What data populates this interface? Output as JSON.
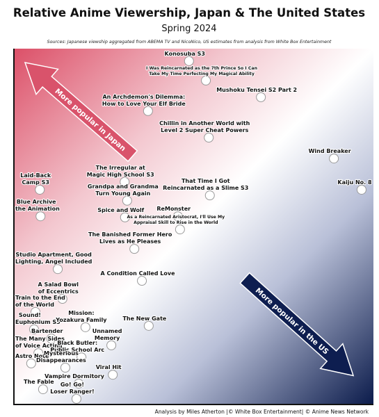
{
  "chart_data": {
    "type": "scatter",
    "title": "Relative Anime Viewership, Japan & The United States",
    "subtitle": "Spring 2024",
    "source": "Sources: Japanese viewship aggregated from ABEMA TV and NicoNico, US estimates from analysis from White Box Entertainment",
    "footer": "Analysis by Miles Atherton |© White Box Entertainment| © Anime News Network",
    "annotations": [
      "More popular in Japan",
      "More popular in the US"
    ],
    "xlim": [
      0,
      100
    ],
    "ylim": [
      0,
      100
    ],
    "color": "#ffffff",
    "labels": [
      [
        "Konosuba S3"
      ],
      [
        "I Was Reincarnated as the 7th Prince So I Can",
        "Take My Time Perfecting My Magical Ability"
      ],
      [
        "Mushoku Tensei S2 Part 2"
      ],
      [
        "An Archdemon's Dilemma:",
        "How to Love Your Elf Bride"
      ],
      [
        "Chillin in Another World with",
        "Level 2 Super Cheat Powers"
      ],
      [
        "Wind Breaker"
      ],
      [
        "The Irregular at",
        "Magic High School S3"
      ],
      [
        "Laid-Back",
        "Camp S3"
      ],
      [
        "Kaiju No. 8"
      ],
      [
        "That Time I Got",
        "Reincarnated as a Slime S3"
      ],
      [
        "Grandpa and Grandma",
        "Turn Young Again"
      ],
      [
        "Blue Archive",
        "the Animation"
      ],
      [
        "Spice and Wolf"
      ],
      [
        "ReMonster"
      ],
      [
        "As a Reincarnated Aristocrat, I'll Use My",
        "Appraisal Skill to Rise in the World"
      ],
      [
        "The Banished Former Hero",
        "Lives as He Pleases"
      ],
      [
        "Studio Apartment, Good",
        "Lighting, Angel Included"
      ],
      [
        "A Condition Called Love"
      ],
      [
        "A Salad Bowl",
        "of Eccentrics"
      ],
      [
        "Train to the End",
        "of the World"
      ],
      [
        "Sound!",
        "Euphonium S3"
      ],
      [
        "Mission:",
        "Yozakura Family"
      ],
      [
        "The New Gate"
      ],
      [
        "Unnamed",
        "Memory"
      ],
      [
        "Bartender"
      ],
      [
        "The Many Sides",
        "of Voice Acting"
      ],
      [
        "Black Butler:",
        "Public School Arc"
      ],
      [
        "Astro Note"
      ],
      [
        "Mysterious",
        "Disappearances"
      ],
      [
        "Viral Hit"
      ],
      [
        "Vampire Dormitory"
      ],
      [
        "The Fable"
      ],
      [
        "Go! Go!",
        "Loser Ranger!"
      ]
    ],
    "x": [
      48.7,
      53.4,
      68.7,
      37.3,
      54.2,
      89.0,
      30.8,
      7.2,
      96.7,
      54.5,
      31.5,
      7.4,
      30.9,
      45.6,
      46.2,
      33.5,
      12.2,
      35.6,
      13.5,
      6.0,
      5.6,
      19.9,
      37.5,
      27.1,
      10.4,
      6.8,
      18.8,
      4.8,
      14.3,
      27.5,
      18.0,
      8.1,
      17.4
    ],
    "y": [
      96.5,
      91.0,
      86.3,
      82.4,
      74.9,
      69.0,
      62.4,
      60.2,
      60.2,
      58.6,
      57.1,
      52.7,
      52.4,
      52.7,
      49.0,
      43.5,
      37.8,
      34.5,
      29.4,
      25.7,
      20.8,
      21.4,
      21.8,
      16.3,
      18.2,
      14.1,
      12.9,
      11.2,
      10.0,
      8.0,
      5.5,
      3.9,
      1.2
    ]
  }
}
